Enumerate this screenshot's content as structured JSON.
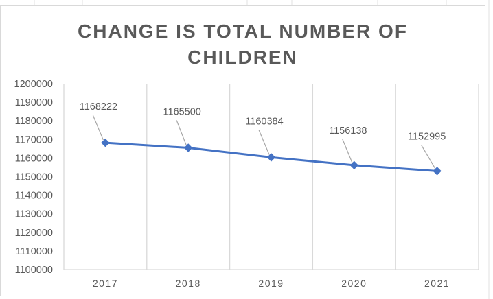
{
  "colors": {
    "series": "#4472c4",
    "grid": "#d9d9d9",
    "text": "#595959",
    "leader": "#a6a6a6"
  },
  "chart_data": {
    "type": "line",
    "title": "CHANGE IS TOTAL NUMBER OF CHILDREN",
    "title_lines": [
      "CHANGE IS TOTAL NUMBER OF",
      "CHILDREN"
    ],
    "categories": [
      "2017",
      "2018",
      "2019",
      "2020",
      "2021"
    ],
    "series": [
      {
        "values": [
          1168222,
          1165500,
          1160384,
          1156138,
          1152995
        ],
        "data_labels": [
          "1168222",
          "1165500",
          "1160384",
          "1156138",
          "1152995"
        ],
        "marker": "diamond"
      }
    ],
    "y_ticks": [
      "1200000",
      "1190000",
      "1180000",
      "1170000",
      "1160000",
      "1150000",
      "1140000",
      "1130000",
      "1120000",
      "1110000",
      "1100000"
    ],
    "ylim": [
      1100000,
      1200000
    ],
    "ystep": 10000,
    "grid": "vertical-category",
    "legend": "none",
    "xlabel": "",
    "ylabel": ""
  }
}
